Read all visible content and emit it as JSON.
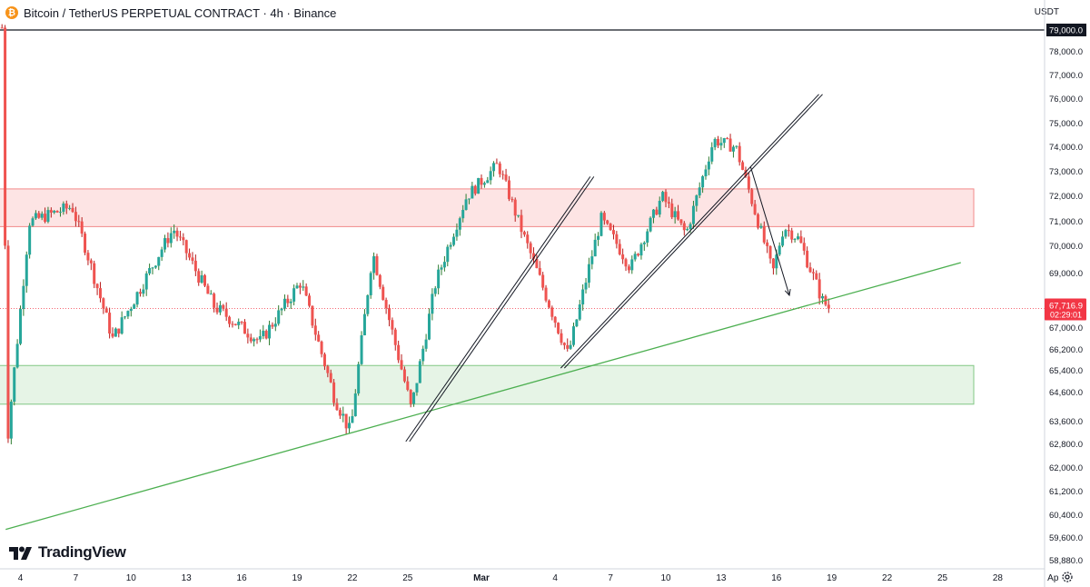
{
  "header": {
    "coin_icon": "bitcoin-icon",
    "coin_glyph": "₿",
    "title": "Bitcoin / TetherUS PERPETUAL CONTRACT · 4h · Binance",
    "currency": "USDT"
  },
  "logo": {
    "text": "TradingView",
    "icon": "tradingview-logo-icon"
  },
  "settings_icon": "gear-icon",
  "colors": {
    "up": "#26a69a",
    "up_wick": "#2e7d32",
    "down": "#ef5350",
    "down_wick": "#b71c1c",
    "price_tag": "#f23645",
    "resistance_fill": "#fde4e4",
    "resistance_border": "#f28b8b",
    "support_fill": "#e6f4e6",
    "support_border": "#81c784",
    "trendline": "#4caf50",
    "drawing": "#131722"
  },
  "chart_data": {
    "type": "candlestick",
    "timeframe": "4h",
    "symbol": "Bitcoin / TetherUS PERPETUAL CONTRACT",
    "exchange": "Binance",
    "y_axis": {
      "labels": [
        "79,000.0",
        "78,000.0",
        "77,000.0",
        "76,000.0",
        "75,000.0",
        "74,000.0",
        "73,000.0",
        "72,000.0",
        "71,000.0",
        "70,000.0",
        "69,000.0",
        "67,000.0",
        "66,200.0",
        "65,400.0",
        "64,600.0",
        "63,600.0",
        "62,800.0",
        "62,000.0",
        "61,200.0",
        "60,400.0",
        "59,600.0",
        "58,880.0"
      ],
      "values": [
        79000,
        78000,
        77000,
        76000,
        75000,
        74000,
        73000,
        72000,
        71000,
        70000,
        69000,
        67000,
        66200,
        65400,
        64600,
        63600,
        62800,
        62000,
        61200,
        60400,
        59600,
        58880
      ]
    },
    "x_axis": {
      "labels": [
        "4",
        "7",
        "10",
        "13",
        "16",
        "19",
        "22",
        "25",
        "Mar",
        "4",
        "7",
        "10",
        "13",
        "16",
        "19",
        "22",
        "25",
        "28",
        "Ap"
      ],
      "days": [
        4,
        7,
        10,
        13,
        16,
        19,
        22,
        25,
        29,
        33,
        36,
        39,
        42,
        45,
        48,
        51,
        54,
        57,
        60
      ]
    },
    "current_price": {
      "value": 67716.9,
      "label": "67,716.9",
      "countdown": "02:29:01"
    },
    "top_line_label": "79,000.0",
    "resistance_zone": {
      "low": 70800,
      "high": 72300,
      "day_start": 1.5,
      "day_end": 55.7
    },
    "support_zone": {
      "low": 64200,
      "high": 65600,
      "day_start": 2.5,
      "day_end": 55.7
    },
    "ascending_trendline": {
      "from": {
        "day": 3.2,
        "price": 59900
      },
      "to": {
        "day": 55,
        "price": 69400
      }
    },
    "channel_lines": [
      {
        "from": {
          "day": 25.0,
          "price": 62900
        },
        "to": {
          "day": 35.0,
          "price": 72800
        }
      },
      {
        "from": {
          "day": 33.4,
          "price": 65500
        },
        "to": {
          "day": 47.4,
          "price": 76200
        }
      }
    ],
    "arrow": {
      "points": [
        {
          "day": 43.6,
          "price": 73200
        },
        {
          "day": 45.7,
          "price": 68200
        }
      ]
    },
    "key_points": [
      {
        "day": 3.0,
        "price": 79100
      },
      {
        "day": 3.3,
        "price": 63000
      },
      {
        "day": 4.5,
        "price": 71000
      },
      {
        "day": 6.8,
        "price": 71600
      },
      {
        "day": 9.0,
        "price": 66600
      },
      {
        "day": 12.3,
        "price": 70700
      },
      {
        "day": 14.5,
        "price": 67800
      },
      {
        "day": 17.0,
        "price": 66500
      },
      {
        "day": 19.2,
        "price": 68700
      },
      {
        "day": 21.0,
        "price": 64500
      },
      {
        "day": 21.9,
        "price": 63200
      },
      {
        "day": 23.1,
        "price": 69800
      },
      {
        "day": 25.2,
        "price": 64000
      },
      {
        "day": 26.5,
        "price": 68600
      },
      {
        "day": 28.2,
        "price": 72000
      },
      {
        "day": 29.9,
        "price": 73300
      },
      {
        "day": 31.4,
        "price": 70200
      },
      {
        "day": 33.7,
        "price": 66000
      },
      {
        "day": 35.5,
        "price": 71100
      },
      {
        "day": 37.1,
        "price": 69200
      },
      {
        "day": 38.8,
        "price": 72000
      },
      {
        "day": 40.1,
        "price": 70500
      },
      {
        "day": 41.6,
        "price": 74300
      },
      {
        "day": 42.8,
        "price": 74000
      },
      {
        "day": 44.8,
        "price": 69000
      },
      {
        "day": 45.4,
        "price": 70800
      },
      {
        "day": 46.2,
        "price": 70300
      },
      {
        "day": 47.5,
        "price": 68000
      },
      {
        "day": 47.9,
        "price": 67700
      }
    ]
  }
}
